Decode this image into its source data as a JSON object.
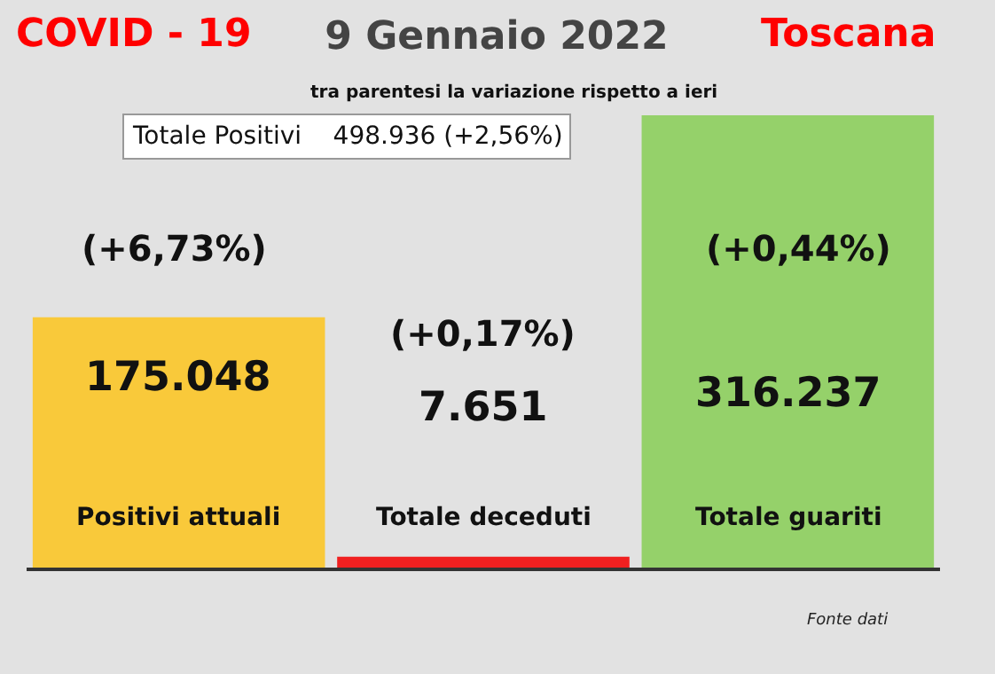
{
  "chart_data": {
    "type": "bar",
    "title": "9 Gennaio 2022",
    "subtitle": "tra parentesi la variazione rispetto a ieri",
    "categories": [
      "Positivi attuali",
      "Totale deceduti",
      "Totale guariti"
    ],
    "values": [
      175048,
      7651,
      316237
    ],
    "colors": [
      "#f9c93a",
      "#f02020",
      "#95d16a"
    ],
    "value_labels": [
      "175.048",
      "7.651",
      "316.237"
    ],
    "annotations": [
      "COVID - 19",
      "Toscana",
      "Totale Positivi    498.936 (+2,56%)",
      "(+6,73%)",
      "(+0,17%)",
      "(+0,44%)",
      "Fonte dati"
    ]
  }
}
